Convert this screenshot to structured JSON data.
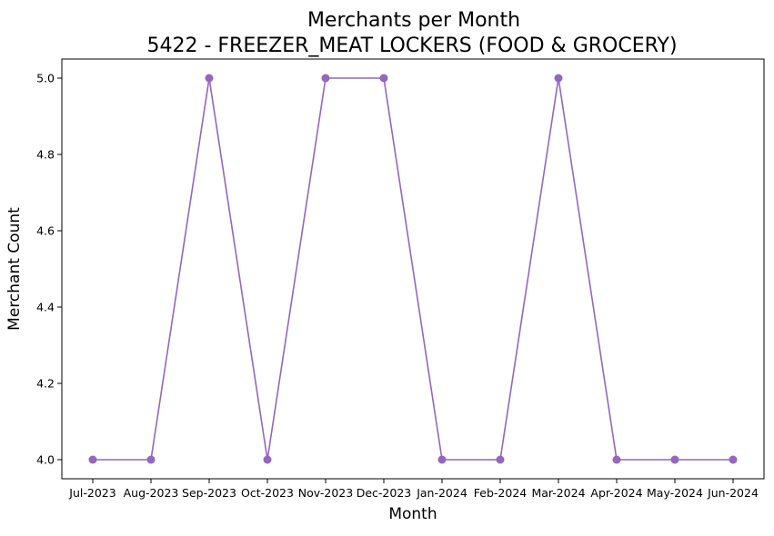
{
  "chart_data": {
    "type": "line",
    "title": "Merchants per Month",
    "subtitle": "5422 - FREEZER_MEAT LOCKERS (FOOD & GROCERY)",
    "xlabel": "Month",
    "ylabel": "Merchant Count",
    "categories": [
      "Jul-2023",
      "Aug-2023",
      "Sep-2023",
      "Oct-2023",
      "Nov-2023",
      "Dec-2023",
      "Jan-2024",
      "Feb-2024",
      "Mar-2024",
      "Apr-2024",
      "May-2024",
      "Jun-2024"
    ],
    "series": [
      {
        "values": [
          4,
          4,
          5,
          4,
          5,
          5,
          4,
          4,
          5,
          4,
          4,
          4
        ],
        "color": "#9467bd"
      }
    ],
    "ylim": [
      3.95,
      5.05
    ],
    "yticks": [
      "4.0",
      "4.2",
      "4.4",
      "4.6",
      "4.8",
      "5.0"
    ],
    "grid": false,
    "legend": "none"
  }
}
